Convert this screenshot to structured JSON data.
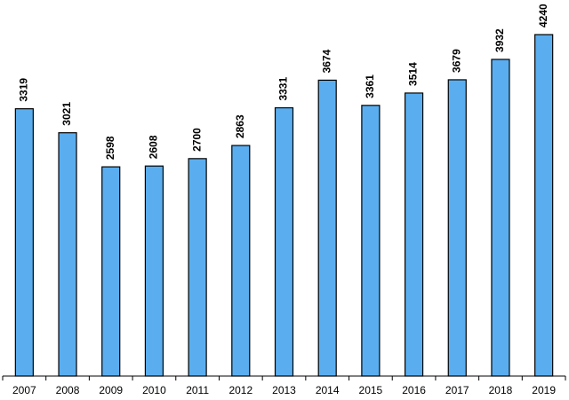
{
  "chart_data": {
    "type": "bar",
    "categories": [
      "2007",
      "2008",
      "2009",
      "2010",
      "2011",
      "2012",
      "2013",
      "2014",
      "2015",
      "2016",
      "2017",
      "2018",
      "2019"
    ],
    "values": [
      3319,
      3021,
      2598,
      2608,
      2700,
      2863,
      3331,
      3674,
      3361,
      3514,
      3679,
      3932,
      4240
    ],
    "color": "#5aaeef",
    "ylim": [
      0,
      4500
    ]
  }
}
